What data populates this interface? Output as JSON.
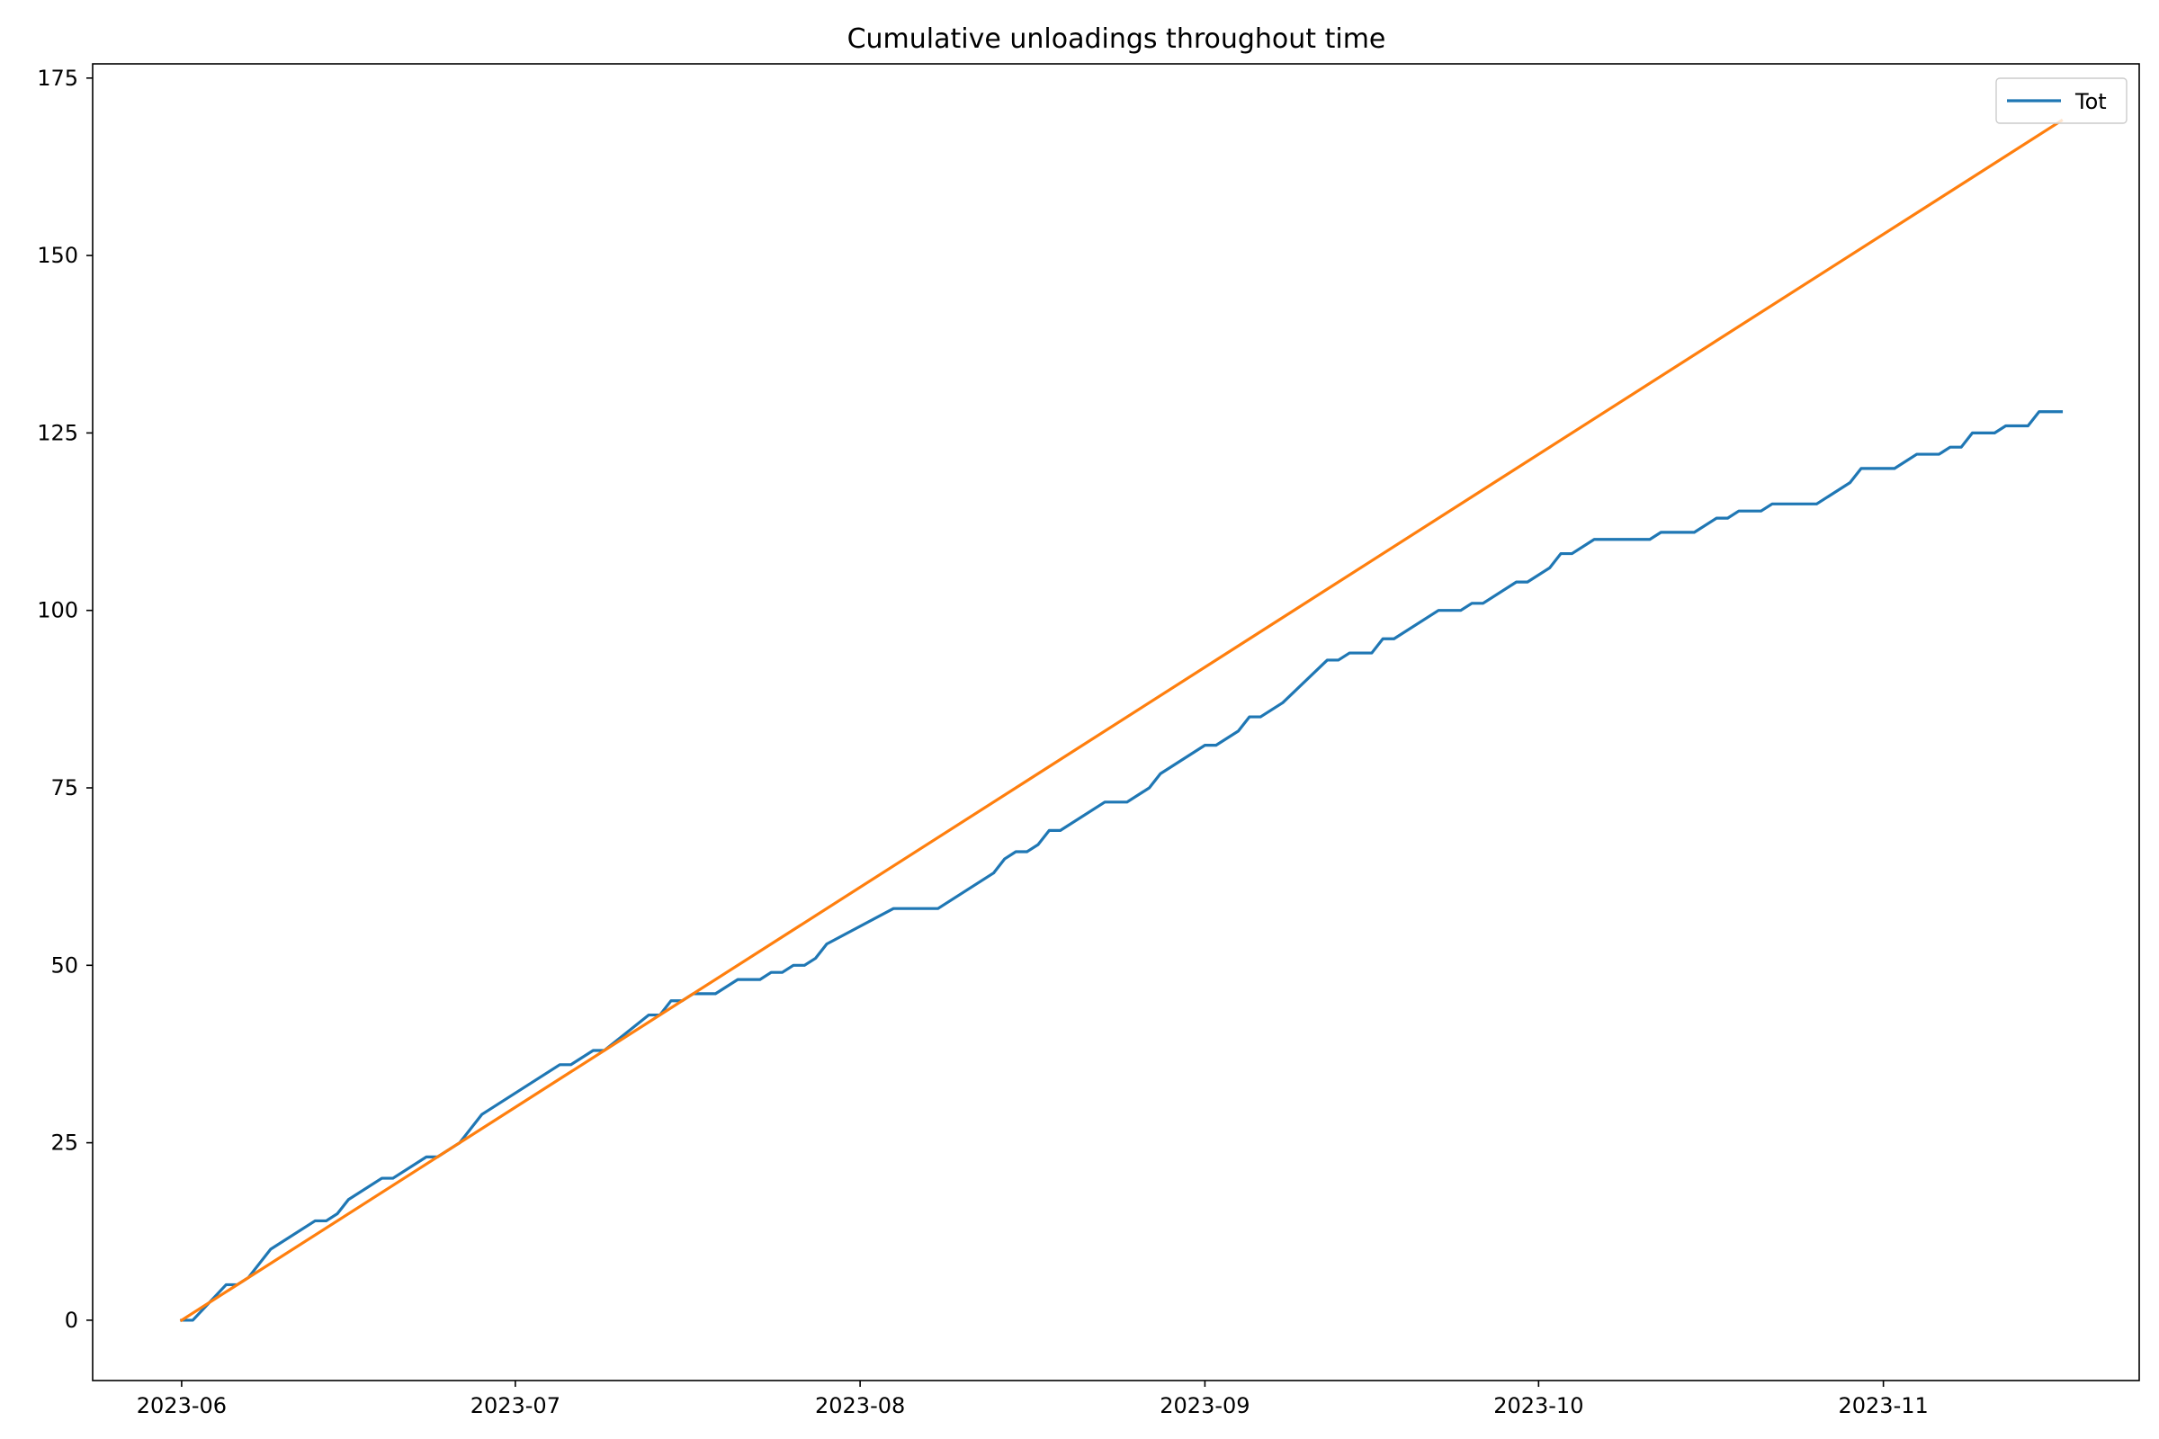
{
  "chart_data": {
    "type": "line",
    "title": "Cumulative unloadings throughout time",
    "xlabel": "",
    "ylabel": "",
    "x_axis": {
      "type": "date",
      "range": [
        "2023-05-24",
        "2023-11-24"
      ],
      "tick_labels": [
        "2023-06",
        "2023-07",
        "2023-08",
        "2023-09",
        "2023-10",
        "2023-11"
      ],
      "tick_dates": [
        "2023-06-01",
        "2023-07-01",
        "2023-08-01",
        "2023-09-01",
        "2023-10-01",
        "2023-11-01"
      ]
    },
    "y_axis": {
      "range": [
        -8.5,
        177
      ],
      "ticks": [
        0,
        25,
        50,
        75,
        100,
        125,
        150,
        175
      ],
      "tick_labels": [
        "0",
        "25",
        "50",
        "75",
        "100",
        "125",
        "150",
        "175"
      ]
    },
    "grid": false,
    "legend": {
      "position": "top-right",
      "entries": [
        "Tot"
      ]
    },
    "series": [
      {
        "name": "Tot",
        "color": "#1f77b4",
        "points": [
          [
            "2023-06-01",
            0
          ],
          [
            "2023-06-02",
            0
          ],
          [
            "2023-06-05",
            5
          ],
          [
            "2023-06-06",
            5
          ],
          [
            "2023-06-07",
            6
          ],
          [
            "2023-06-09",
            10
          ],
          [
            "2023-06-13",
            14
          ],
          [
            "2023-06-14",
            14
          ],
          [
            "2023-06-15",
            15
          ],
          [
            "2023-06-16",
            17
          ],
          [
            "2023-06-19",
            20
          ],
          [
            "2023-06-20",
            20
          ],
          [
            "2023-06-23",
            23
          ],
          [
            "2023-06-24",
            23
          ],
          [
            "2023-06-26",
            25
          ],
          [
            "2023-06-28",
            29
          ],
          [
            "2023-07-05",
            36
          ],
          [
            "2023-07-06",
            36
          ],
          [
            "2023-07-08",
            38
          ],
          [
            "2023-07-09",
            38
          ],
          [
            "2023-07-13",
            43
          ],
          [
            "2023-07-14",
            43
          ],
          [
            "2023-07-15",
            45
          ],
          [
            "2023-07-16",
            45
          ],
          [
            "2023-07-17",
            46
          ],
          [
            "2023-07-19",
            46
          ],
          [
            "2023-07-21",
            48
          ],
          [
            "2023-07-23",
            48
          ],
          [
            "2023-07-24",
            49
          ],
          [
            "2023-07-25",
            49
          ],
          [
            "2023-07-26",
            50
          ],
          [
            "2023-07-27",
            50
          ],
          [
            "2023-07-28",
            51
          ],
          [
            "2023-07-29",
            53
          ],
          [
            "2023-08-04",
            58
          ],
          [
            "2023-08-08",
            58
          ],
          [
            "2023-08-13",
            63
          ],
          [
            "2023-08-14",
            65
          ],
          [
            "2023-08-15",
            66
          ],
          [
            "2023-08-16",
            66
          ],
          [
            "2023-08-17",
            67
          ],
          [
            "2023-08-18",
            69
          ],
          [
            "2023-08-19",
            69
          ],
          [
            "2023-08-23",
            73
          ],
          [
            "2023-08-25",
            73
          ],
          [
            "2023-08-27",
            75
          ],
          [
            "2023-08-28",
            77
          ],
          [
            "2023-09-01",
            81
          ],
          [
            "2023-09-02",
            81
          ],
          [
            "2023-09-04",
            83
          ],
          [
            "2023-09-05",
            85
          ],
          [
            "2023-09-06",
            85
          ],
          [
            "2023-09-08",
            87
          ],
          [
            "2023-09-12",
            93
          ],
          [
            "2023-09-13",
            93
          ],
          [
            "2023-09-14",
            94
          ],
          [
            "2023-09-16",
            94
          ],
          [
            "2023-09-17",
            96
          ],
          [
            "2023-09-18",
            96
          ],
          [
            "2023-09-22",
            100
          ],
          [
            "2023-09-24",
            100
          ],
          [
            "2023-09-25",
            101
          ],
          [
            "2023-09-26",
            101
          ],
          [
            "2023-09-29",
            104
          ],
          [
            "2023-09-30",
            104
          ],
          [
            "2023-10-02",
            106
          ],
          [
            "2023-10-03",
            108
          ],
          [
            "2023-10-04",
            108
          ],
          [
            "2023-10-06",
            110
          ],
          [
            "2023-10-11",
            110
          ],
          [
            "2023-10-12",
            111
          ],
          [
            "2023-10-15",
            111
          ],
          [
            "2023-10-17",
            113
          ],
          [
            "2023-10-18",
            113
          ],
          [
            "2023-10-19",
            114
          ],
          [
            "2023-10-21",
            114
          ],
          [
            "2023-10-22",
            115
          ],
          [
            "2023-10-26",
            115
          ],
          [
            "2023-10-29",
            118
          ],
          [
            "2023-10-30",
            120
          ],
          [
            "2023-11-02",
            120
          ],
          [
            "2023-11-04",
            122
          ],
          [
            "2023-11-06",
            122
          ],
          [
            "2023-11-07",
            123
          ],
          [
            "2023-11-08",
            123
          ],
          [
            "2023-11-09",
            125
          ],
          [
            "2023-11-11",
            125
          ],
          [
            "2023-11-12",
            126
          ],
          [
            "2023-11-14",
            126
          ],
          [
            "2023-11-15",
            128
          ],
          [
            "2023-11-17",
            128
          ]
        ]
      },
      {
        "name": "",
        "color": "#ff7f0e",
        "points": [
          [
            "2023-06-01",
            0
          ],
          [
            "2023-11-17",
            169
          ]
        ]
      }
    ]
  }
}
